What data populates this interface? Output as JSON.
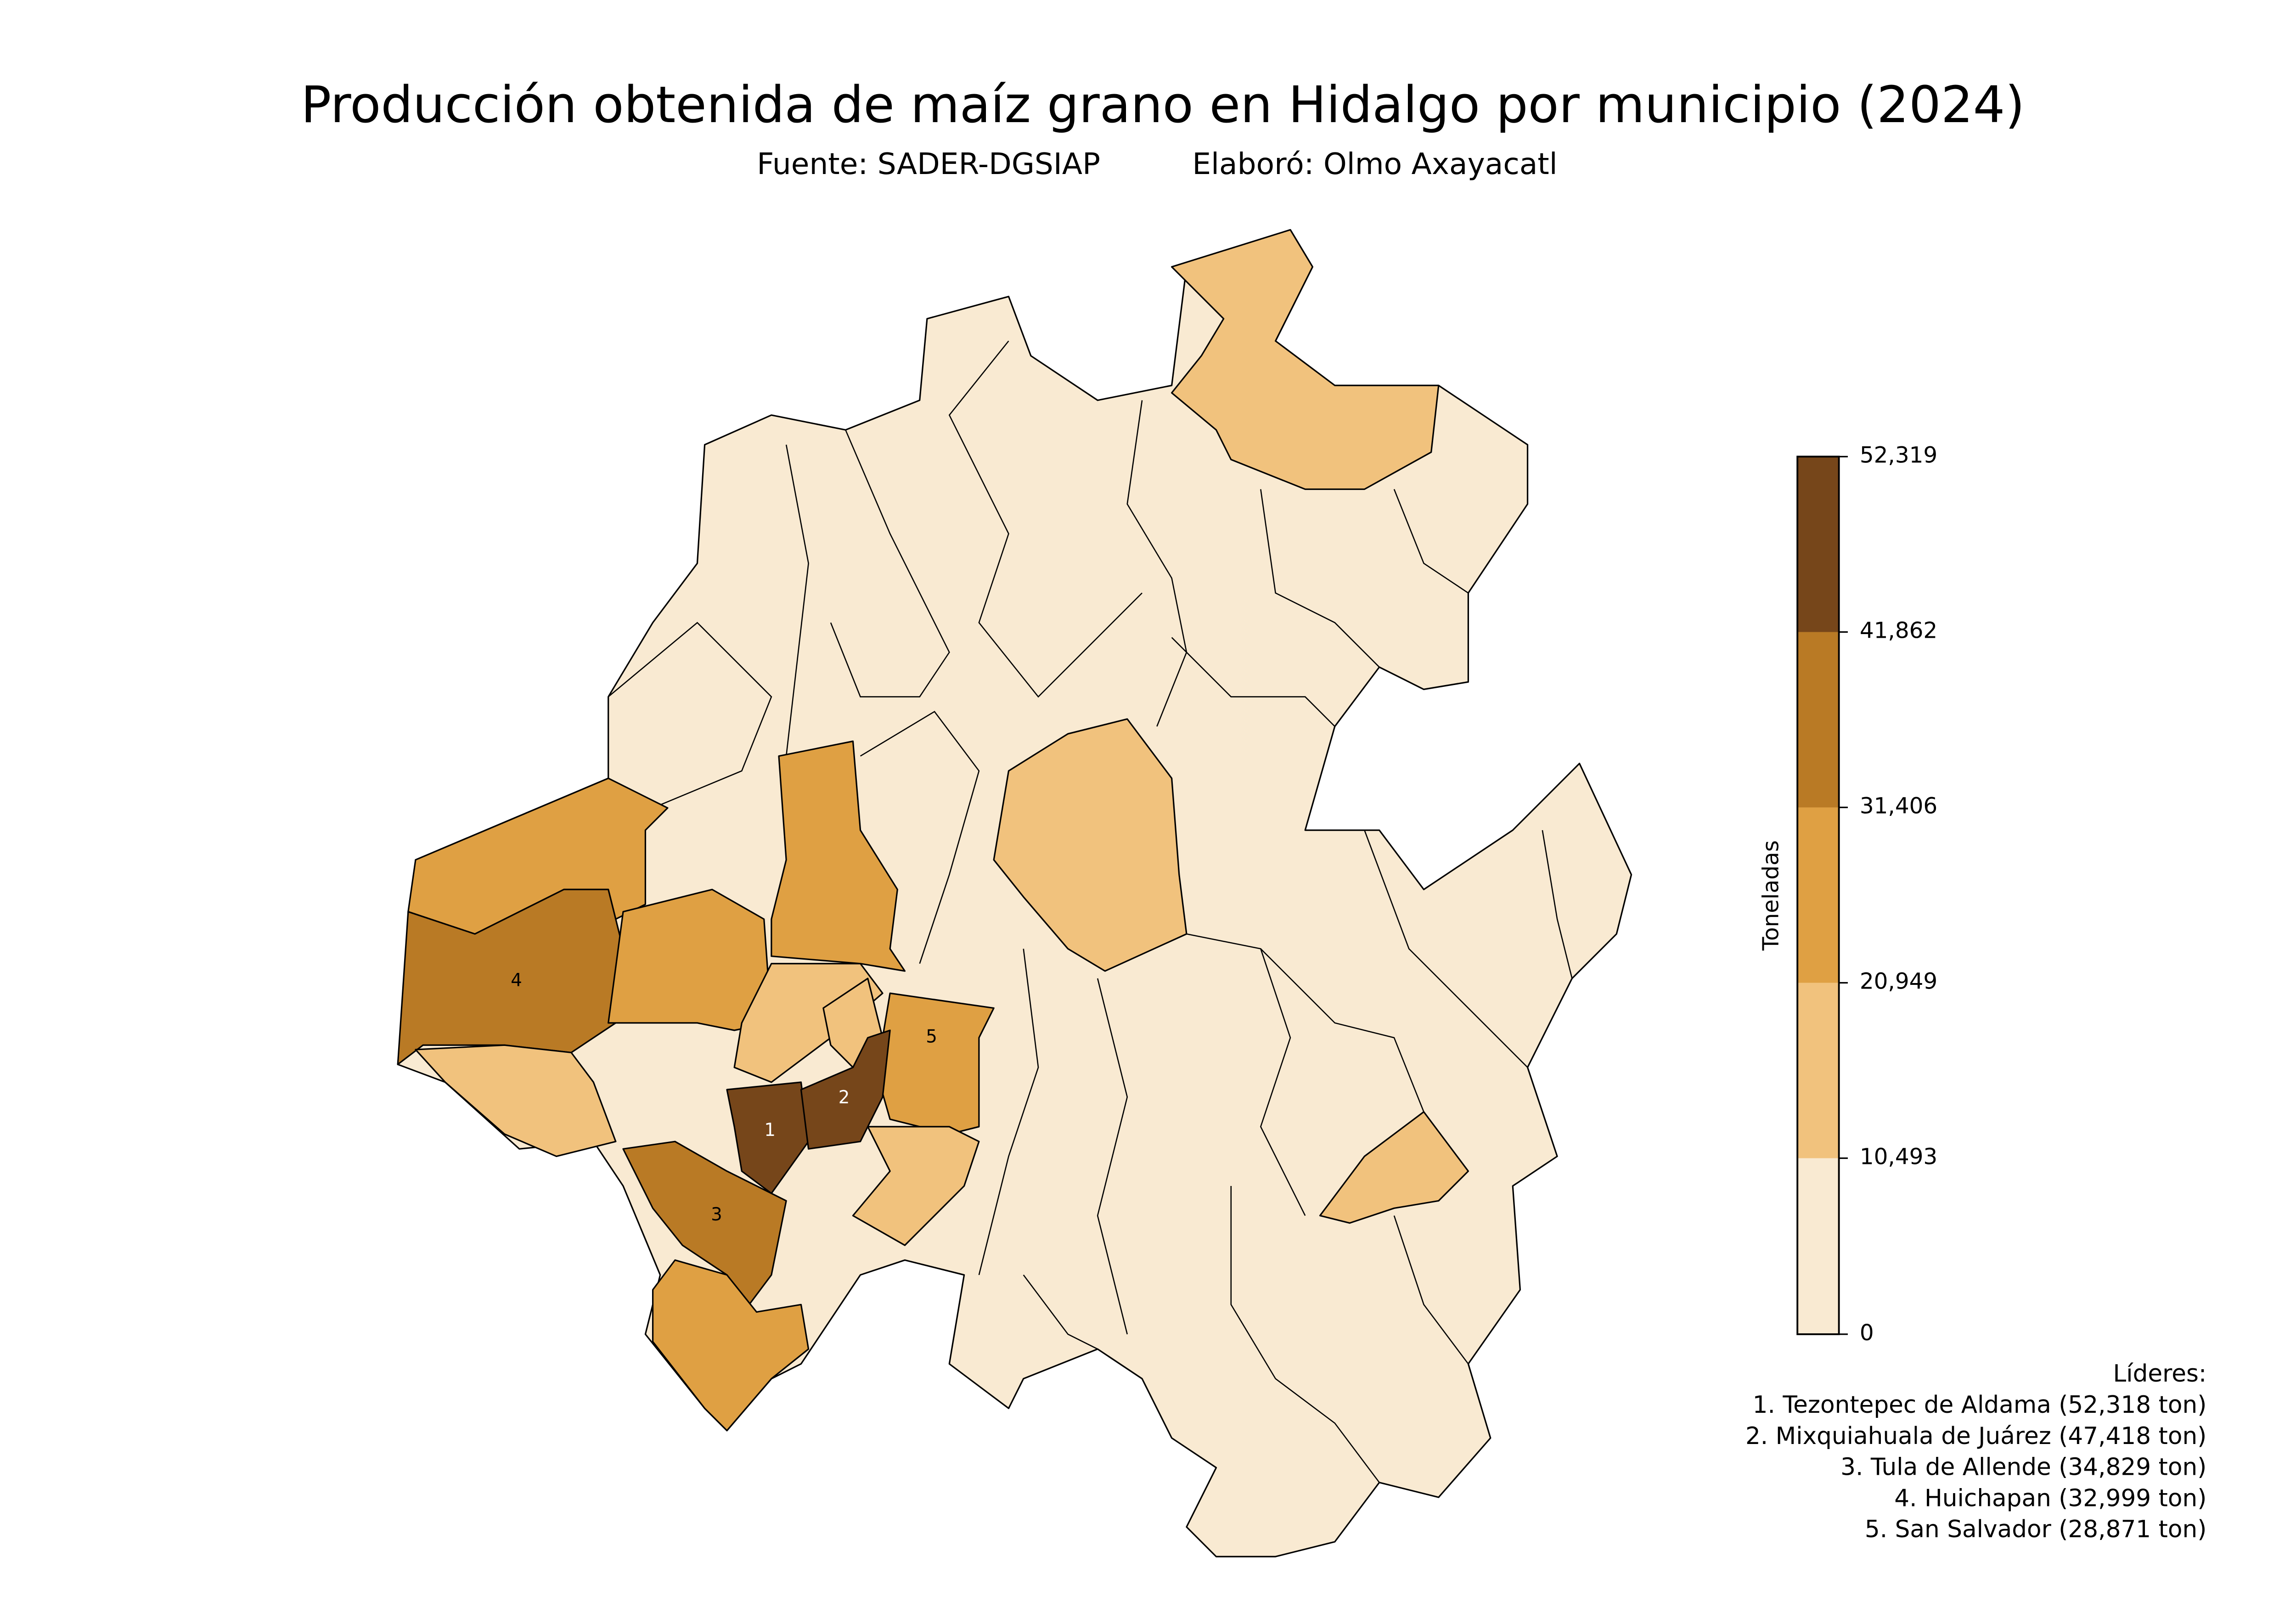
{
  "chart_data": {
    "type": "choropleth",
    "title": "Producción obtenida de maíz grano en Hidalgo por municipio (2024)",
    "subtitle_source": "Fuente: SADER-DGSIAP",
    "subtitle_author": "Elaboró: Olmo Axayacatl",
    "colorbar": {
      "label": "Toneladas",
      "ylim": [
        0,
        52319
      ],
      "yticks": [
        0,
        {
          "value": 10493,
          "label": "10,493"
        },
        {
          "value": 20949,
          "label": "20,949"
        },
        {
          "value": 31406,
          "label": "31,406"
        },
        {
          "value": 41862,
          "label": "41,862"
        },
        {
          "value": 52319,
          "label": "52,319"
        }
      ],
      "colors": [
        "#f9ead2",
        "#f1c27d",
        "#dfa043",
        "#b97a25",
        "#76461a"
      ]
    },
    "region_labels": [
      "1",
      "2",
      "3",
      "4",
      "5"
    ],
    "leaders": {
      "title": "Líderes:",
      "items": [
        "1. Tezontepec de Aldama (52,318 ton)",
        "2. Mixquiahuala de Juárez (47,418 ton)",
        "3. Tula de Allende (34,829 ton)",
        "4. Huichapan (32,999 ton)",
        "5. San Salvador (28,871 ton)"
      ]
    }
  }
}
